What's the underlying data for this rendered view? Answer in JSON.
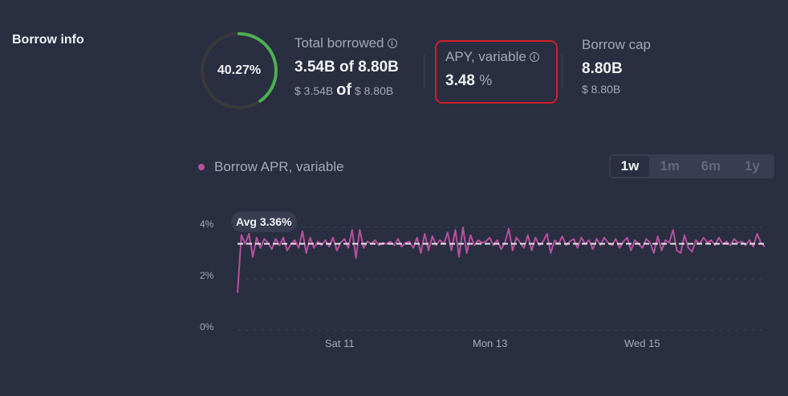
{
  "section": {
    "title": "Borrow info"
  },
  "utilization": {
    "percent_label": "40.27%",
    "percent": 40.27,
    "ring_color": "#4caf50",
    "track_color": "#3a3a3a"
  },
  "total_borrowed": {
    "label": "Total borrowed",
    "info_icon": "info-icon",
    "value_amount": "3.54B",
    "value_of": "of",
    "value_total": "8.80B",
    "sub_amount": "$ 3.54B",
    "sub_of": "of",
    "sub_total": "$ 8.80B"
  },
  "apy": {
    "label": "APY, variable",
    "info_icon": "info-icon",
    "value": "3.48",
    "unit": "%",
    "highlight_color": "#d11f27"
  },
  "borrow_cap": {
    "label": "Borrow cap",
    "value": "8.80B",
    "sub": "$ 8.80B"
  },
  "chart_controls": {
    "legend_label": "Borrow APR, variable",
    "legend_color": "#b6509e",
    "ranges": [
      {
        "label": "1w",
        "active": true
      },
      {
        "label": "1m",
        "active": false
      },
      {
        "label": "6m",
        "active": false
      },
      {
        "label": "1y",
        "active": false
      }
    ]
  },
  "chart_data": {
    "type": "line",
    "title": "Borrow APR, variable",
    "xlabel": "",
    "ylabel": "",
    "ylim": [
      0,
      4.4
    ],
    "y_ticks": [
      "0%",
      "2%",
      "4%"
    ],
    "x_ticks": [
      "Sat 11",
      "Mon 13",
      "Wed 15"
    ],
    "grid": true,
    "avg_label": "Avg 3.36%",
    "avg": 3.36,
    "series": [
      {
        "name": "Borrow APR, variable",
        "color": "#b6509e",
        "values": [
          1.45,
          3.7,
          3.35,
          3.75,
          2.85,
          3.6,
          3.2,
          3.55,
          3.4,
          3.15,
          3.55,
          3.3,
          3.6,
          3.1,
          3.35,
          3.5,
          3.2,
          3.85,
          3.0,
          3.6,
          3.2,
          3.45,
          3.3,
          3.5,
          3.25,
          3.6,
          3.1,
          3.4,
          3.55,
          3.2,
          3.9,
          2.8,
          3.9,
          3.2,
          3.45,
          3.35,
          3.5,
          3.3,
          3.4,
          3.35,
          3.45,
          3.3,
          3.55,
          3.25,
          3.4,
          3.45,
          3.2,
          3.6,
          3.0,
          3.75,
          3.1,
          3.65,
          3.3,
          3.5,
          3.35,
          3.8,
          3.1,
          3.9,
          2.85,
          4.0,
          3.0,
          3.7,
          3.3,
          3.5,
          3.4,
          3.45,
          3.6,
          3.3,
          3.5,
          3.15,
          3.4,
          3.95,
          3.1,
          3.6,
          3.4,
          3.2,
          3.7,
          3.1,
          3.6,
          3.3,
          3.45,
          3.75,
          3.0,
          3.5,
          3.35,
          3.65,
          3.3,
          3.45,
          3.55,
          3.2,
          3.6,
          3.35,
          3.5,
          3.15,
          3.55,
          3.3,
          3.6,
          3.4,
          3.3,
          3.55,
          3.2,
          3.45,
          3.6,
          3.1,
          3.5,
          3.35,
          3.2,
          3.55,
          3.4,
          3.0,
          3.65,
          3.1,
          3.5,
          3.4,
          3.9,
          3.1,
          3.0,
          3.7,
          3.2,
          3.05,
          3.5,
          3.35,
          3.6,
          3.4,
          3.5,
          3.3,
          3.6,
          3.35,
          3.45,
          3.3,
          3.55,
          3.4,
          3.45,
          3.3,
          3.5,
          3.25,
          3.75,
          3.4,
          3.25
        ]
      }
    ]
  }
}
